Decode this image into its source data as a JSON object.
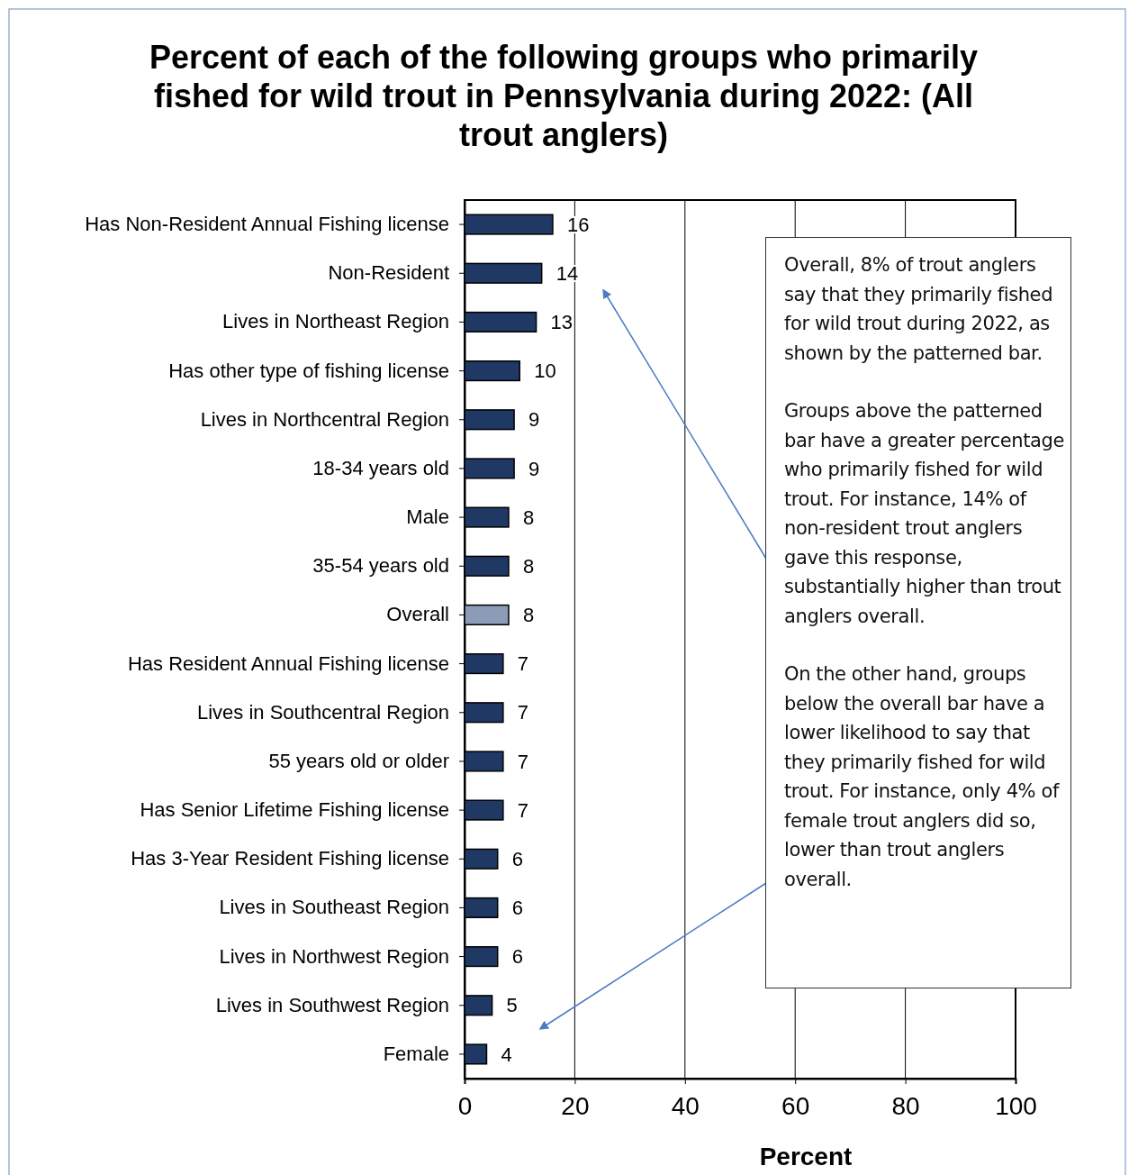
{
  "chart_data": {
    "type": "bar",
    "orientation": "horizontal",
    "title": "Percent of each of the following groups who primarily fished for wild trout in Pennsylvania during 2022: (All trout anglers)",
    "xlabel": "Percent",
    "categories": [
      "Has Non-Resident Annual Fishing license",
      "Non-Resident",
      "Lives in Northeast Region",
      "Has other type of fishing license",
      "Lives in Northcentral Region",
      "18-34 years old",
      "Male",
      "35-54 years old",
      "Overall",
      "Has Resident Annual Fishing license",
      "Lives in Southcentral Region",
      "55 years old or older",
      "Has Senior Lifetime Fishing license",
      "Has 3-Year Resident Fishing license",
      "Lives in Southeast Region",
      "Lives in Northwest Region",
      "Lives in Southwest Region",
      "Female"
    ],
    "values": [
      16,
      14,
      13,
      10,
      9,
      9,
      8,
      8,
      8,
      7,
      7,
      7,
      7,
      6,
      6,
      6,
      5,
      4
    ],
    "colors": [
      "#1f3864",
      "#1f3864",
      "#1f3864",
      "#1f3864",
      "#1f3864",
      "#1f3864",
      "#1f3864",
      "#1f3864",
      "#8b9bb8",
      "#1f3864",
      "#1f3864",
      "#1f3864",
      "#1f3864",
      "#1f3864",
      "#1f3864",
      "#1f3864",
      "#1f3864",
      "#1f3864"
    ],
    "xlim": [
      0,
      100
    ],
    "xticks": [
      0,
      20,
      40,
      60,
      80,
      100
    ],
    "grid": "x",
    "data_labels": true,
    "annotations": [
      "Overall, 8% of trout anglers say that they primarily fished for wild trout during 2022, as shown by the patterned bar.",
      "Groups above the patterned bar have a greater percentage who primarily fished for wild trout. For instance, 14% of non-resident trout anglers gave this response, substantially higher than trout anglers overall.",
      "On the other hand, groups below the overall bar have a lower likelihood to say that they primarily fished for wild trout. For instance, only 4% of female trout anglers did so, lower than trout anglers overall."
    ]
  }
}
